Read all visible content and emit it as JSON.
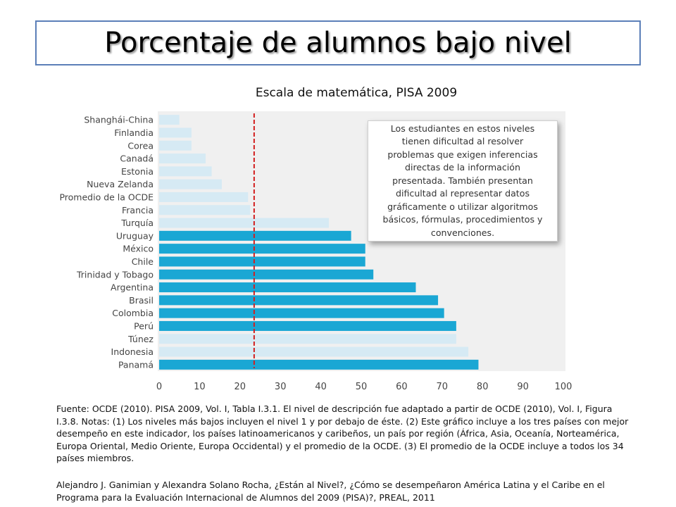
{
  "title": "Porcentaje de alumnos bajo nivel",
  "subtitle": "Escala de matemática, PISA 2009",
  "note": "Los estudiantes en estos niveles tienen dificultad al resolver problemas que exigen inferencias directas de la información presentada. También presentan dificultad al representar datos gráficamente o utilizar algoritmos básicos, fórmulas, procedimientos y convenciones.",
  "source": "Fuente: OCDE (2010). PISA 2009, Vol. I, Tabla I.3.1. El nivel de descripción fue adaptado a partir de OCDE (2010), Vol. I, Figura I.3.8. Notas: (1) Los niveles más bajos incluyen el nivel 1 y por debajo de éste. (2) Este gráfico incluye a los tres países con mejor desempeño en este indicador, los países latinoamericanos y caribeños, un país por región (África, Asia, Oceanía, Norteamérica, Europa Oriental, Medio Oriente, Europa Occidental) y el promedio de la OCDE. (3) El promedio de la OCDE incluye a todos los 34 países miembros.",
  "citation": "Alejandro J. Ganimian y Alexandra Solano Rocha, ¿Están al Nivel?, ¿Cómo se desempeñaron América Latina y el Caribe en el Programa para la Evaluación Internacional de Alumnos del 2009 (PISA)?, PREAL, 2011",
  "colors": {
    "highlight": "#1aa7d4",
    "other": "#d6eaf4",
    "reference_line": "#d21f1f",
    "panel": "#f0f0f0",
    "axis_text": "#444444"
  },
  "chart_data": {
    "type": "bar",
    "orientation": "horizontal",
    "categories": [
      "Shanghái-China",
      "Finlandia",
      "Corea",
      "Canadá",
      "Estonia",
      "Nueva Zelanda",
      "Promedio de la OCDE",
      "Francia",
      "Turquía",
      "Uruguay",
      "México",
      "Chile",
      "Trinidad y Tobago",
      "Argentina",
      "Brasil",
      "Colombia",
      "Perú",
      "Túnez",
      "Indonesia",
      "Panamá"
    ],
    "values": [
      5,
      8,
      8,
      11.5,
      13,
      15.5,
      22,
      22.5,
      42,
      47.5,
      51,
      51,
      53,
      63.5,
      69,
      70.5,
      73.5,
      73.5,
      76.5,
      79
    ],
    "highlighted": [
      false,
      false,
      false,
      false,
      false,
      false,
      false,
      false,
      false,
      true,
      true,
      true,
      true,
      true,
      true,
      true,
      true,
      false,
      false,
      true
    ],
    "reference_line": 23.5,
    "xlim": [
      0,
      100
    ],
    "xticks": [
      0,
      10,
      20,
      30,
      40,
      50,
      60,
      70,
      80,
      90,
      100
    ],
    "xlabel": "",
    "ylabel": "",
    "grid": false
  }
}
